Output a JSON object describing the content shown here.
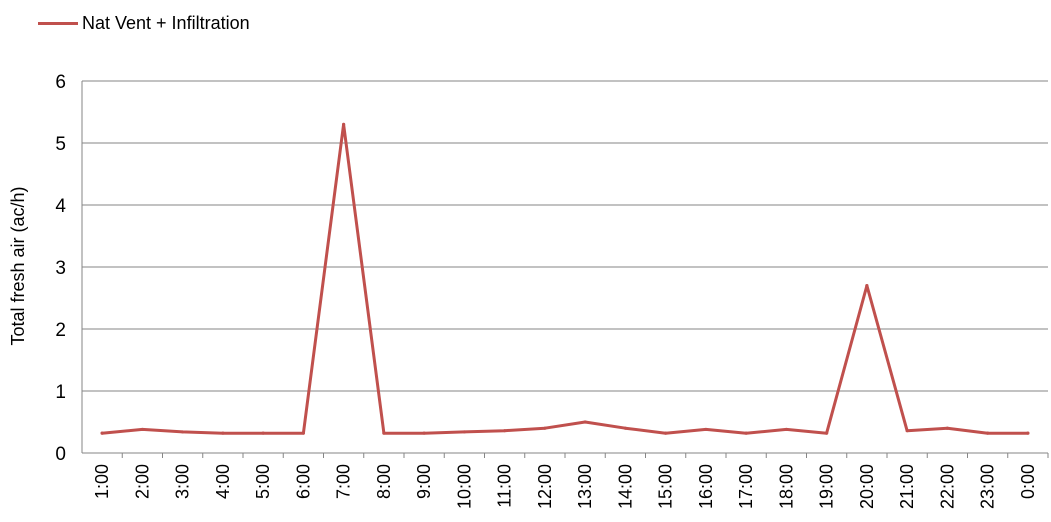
{
  "chart_data": {
    "type": "line",
    "title": "",
    "xlabel": "",
    "ylabel": "Total fresh air (ac/h)",
    "ylim": [
      0,
      6
    ],
    "yticks": [
      0,
      1,
      2,
      3,
      4,
      5,
      6
    ],
    "grid": true,
    "legend_position": "top-left",
    "categories": [
      "1:00",
      "2:00",
      "3:00",
      "4:00",
      "5:00",
      "6:00",
      "7:00",
      "8:00",
      "9:00",
      "10:00",
      "11:00",
      "12:00",
      "13:00",
      "14:00",
      "15:00",
      "16:00",
      "17:00",
      "18:00",
      "19:00",
      "20:00",
      "21:00",
      "22:00",
      "23:00",
      "0:00"
    ],
    "series": [
      {
        "name": "Nat Vent + Infiltration",
        "color": "#c0504d",
        "values": [
          0.32,
          0.38,
          0.34,
          0.32,
          0.32,
          0.32,
          5.3,
          0.32,
          0.32,
          0.34,
          0.36,
          0.4,
          0.5,
          0.4,
          0.32,
          0.38,
          0.32,
          0.38,
          0.32,
          2.7,
          0.36,
          0.4,
          0.32,
          0.32
        ]
      }
    ]
  }
}
